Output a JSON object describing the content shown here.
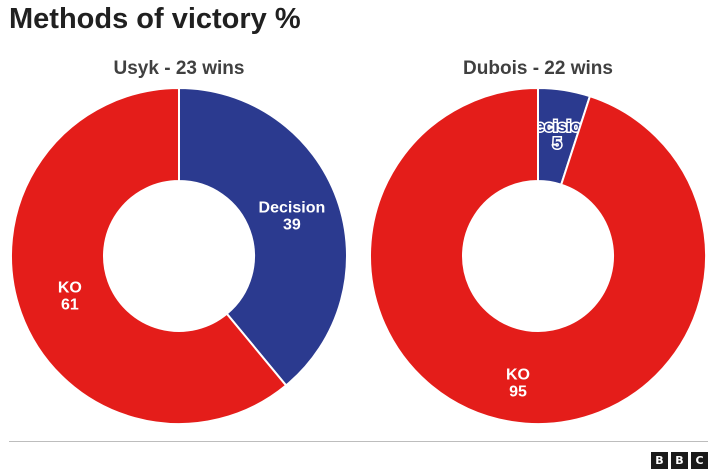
{
  "title": "Methods of victory %",
  "colors": {
    "ko": "#e41d1a",
    "decision": "#2b3a8f"
  },
  "logo": [
    "B",
    "B",
    "C"
  ],
  "chart_data": [
    {
      "type": "pie",
      "title": "Usyk - 23 wins",
      "donut": true,
      "slices": [
        {
          "label": "Decision",
          "value": 39,
          "color": "#2b3a8f"
        },
        {
          "label": "KO",
          "value": 61,
          "color": "#e41d1a"
        }
      ]
    },
    {
      "type": "pie",
      "title": "Dubois - 22 wins",
      "donut": true,
      "slices": [
        {
          "label": "Decision",
          "value": 5,
          "color": "#2b3a8f"
        },
        {
          "label": "KO",
          "value": 95,
          "color": "#e41d1a"
        }
      ]
    }
  ]
}
